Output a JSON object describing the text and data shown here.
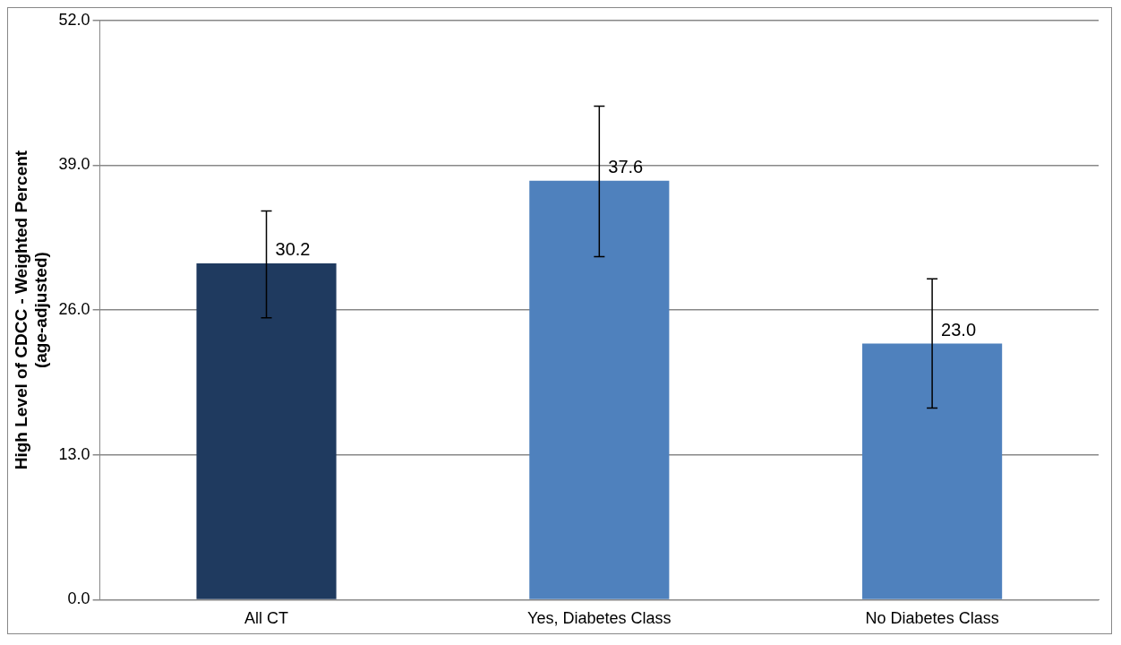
{
  "chart_data": {
    "type": "bar",
    "ylabel": "High Level of CDCC - Weighted Percent\n(age-adjusted)",
    "categories": [
      "All CT",
      "Yes, Diabetes Class",
      "No Diabetes Class"
    ],
    "values": [
      30.2,
      37.6,
      23.0
    ],
    "colors": [
      "#1f3a5f",
      "#4f81bd",
      "#4f81bd"
    ],
    "errors": [
      [
        25.3,
        34.9
      ],
      [
        30.8,
        44.3
      ],
      [
        17.2,
        28.8
      ]
    ],
    "value_labels": [
      "30.2",
      "37.6",
      "23.0"
    ],
    "ylim": [
      0,
      52
    ],
    "yticks": [
      {
        "value": 0,
        "label": "0.0"
      },
      {
        "value": 13,
        "label": "13.0"
      },
      {
        "value": 26,
        "label": "26.0"
      },
      {
        "value": 39,
        "label": "39.0"
      },
      {
        "value": 52,
        "label": "52.0"
      }
    ],
    "grid": "y",
    "legend": false
  }
}
